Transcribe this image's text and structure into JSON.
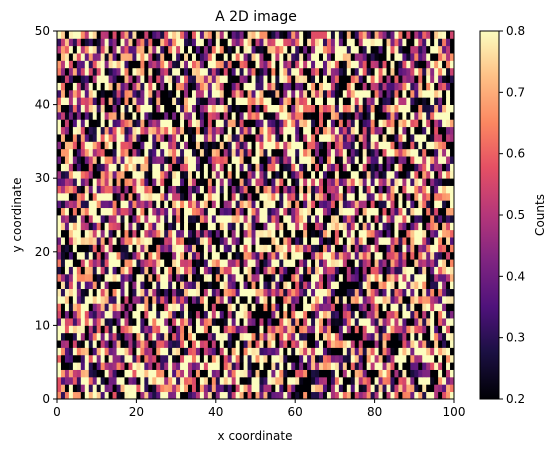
{
  "chart_data": {
    "type": "heatmap",
    "title": "A 2D image",
    "xlabel": "x coordinate",
    "ylabel": "y coordinate",
    "xlim": [
      0,
      100
    ],
    "ylim": [
      0,
      50
    ],
    "x_ticks": [
      "0",
      "20",
      "40",
      "60",
      "80",
      "100"
    ],
    "y_ticks": [
      "0",
      "10",
      "20",
      "30",
      "40",
      "50"
    ],
    "grid_shape": [
      50,
      100
    ],
    "colormap": "magma",
    "value_range": [
      0.2,
      0.8
    ],
    "value_distribution": "uniform random values clipped to [0.2, 0.8]; roughly a third of cells saturate at 0.2 (black) or 0.8 (light yellow)",
    "colorbar": {
      "label": "Counts",
      "ticks": [
        "0.2",
        "0.3",
        "0.4",
        "0.5",
        "0.6",
        "0.7",
        "0.8"
      ]
    },
    "grid": false
  }
}
